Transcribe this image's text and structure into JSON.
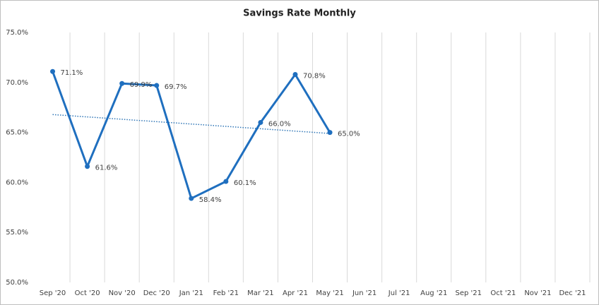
{
  "chart_data": {
    "type": "line",
    "title": "Savings Rate Monthly",
    "categories": [
      "Sep '20",
      "Oct '20",
      "Nov '20",
      "Dec '20",
      "Jan '21",
      "Feb '21",
      "Mar '21",
      "Apr '21",
      "May '21",
      "Jun '21",
      "Jul '21",
      "Aug '21",
      "Sep '21",
      "Oct '21",
      "Nov '21",
      "Dec '21"
    ],
    "values": [
      71.1,
      61.6,
      69.9,
      69.7,
      58.4,
      60.1,
      66.0,
      70.8,
      65.0,
      null,
      null,
      null,
      null,
      null,
      null,
      null
    ],
    "value_labels": [
      "71.1%",
      "61.6%",
      "69.9%",
      "69.7%",
      "58.4%",
      "60.1%",
      "66.0%",
      "70.8%",
      "65.0%",
      null,
      null,
      null,
      null,
      null,
      null,
      null
    ],
    "color": "#1f6fbf",
    "ylim": [
      50,
      75
    ],
    "yticks": [
      {
        "value": 50,
        "label": "50.0%"
      },
      {
        "value": 55,
        "label": "55.0%"
      },
      {
        "value": 60,
        "label": "60.0%"
      },
      {
        "value": 65,
        "label": "65.0%"
      },
      {
        "value": 70,
        "label": "70.0%"
      },
      {
        "value": 75,
        "label": "75.0%"
      }
    ],
    "grid": "vertical",
    "trendline": "linear",
    "trendline_color": "#2e75b6"
  }
}
